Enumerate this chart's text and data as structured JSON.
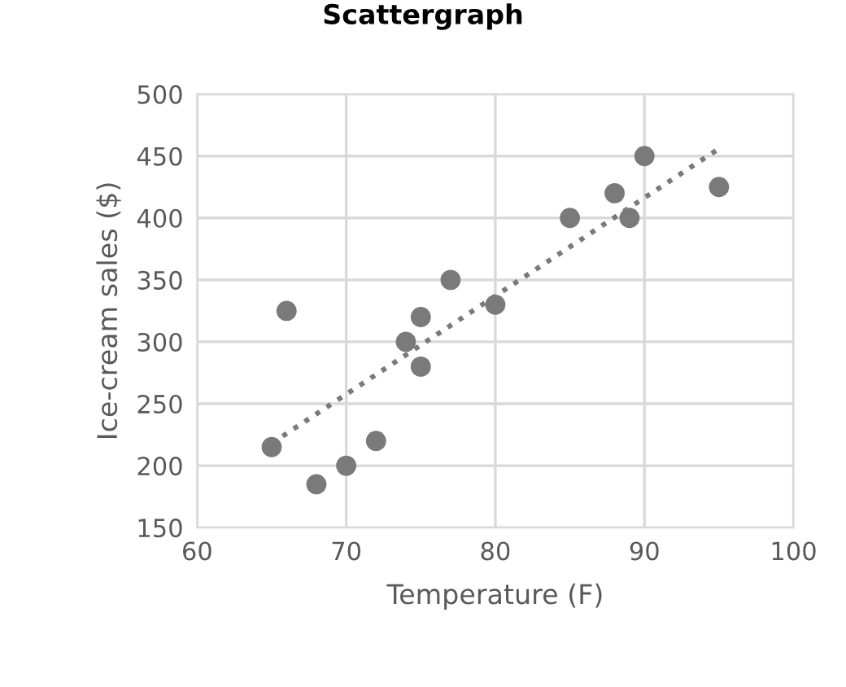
{
  "chart_data": {
    "type": "scatter",
    "title": "Scattergraph",
    "xlabel": "Temperature (F)",
    "ylabel": "Ice-cream sales ($)",
    "series": [
      {
        "color": "#7a7a7a",
        "marker": "circle",
        "x": [
          65,
          66,
          68,
          70,
          72,
          74,
          75,
          75,
          77,
          80,
          85,
          88,
          89,
          90,
          95
        ],
        "values": [
          215,
          325,
          185,
          200,
          220,
          300,
          320,
          280,
          350,
          330,
          400,
          420,
          400,
          450,
          425
        ]
      },
      {
        "type": "line",
        "color": "#7a7a7a",
        "line_style": "dotted",
        "x": [
          65,
          95
        ],
        "values": [
          218,
          456
        ]
      }
    ],
    "xlim": [
      60,
      100
    ],
    "xticks": [
      60,
      70,
      80,
      90,
      100
    ],
    "ylim": [
      150,
      500
    ],
    "yticks": [
      150,
      200,
      250,
      300,
      350,
      400,
      450,
      500
    ],
    "grid": true
  }
}
